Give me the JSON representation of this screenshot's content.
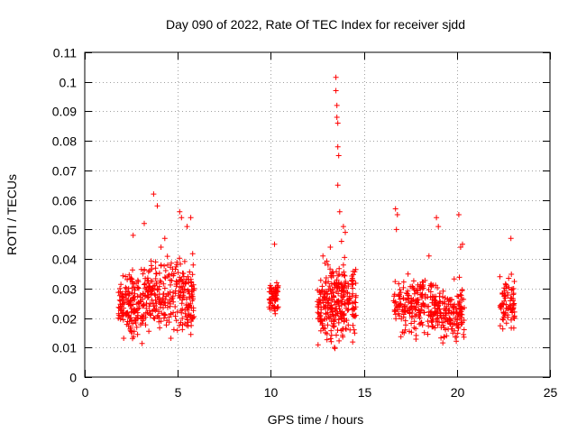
{
  "chart_data": {
    "type": "scatter",
    "title": "Day 090 of 2022, Rate Of TEC Index for receiver sjdd",
    "xlabel": "GPS time / hours",
    "ylabel": "ROTI / TECUs",
    "xlim": [
      0,
      25
    ],
    "ylim": [
      0,
      0.11
    ],
    "xticks": [
      0,
      5,
      10,
      15,
      20,
      25
    ],
    "xtick_labels": [
      "0",
      "5",
      "10",
      "15",
      "20",
      "25"
    ],
    "yticks": [
      0,
      0.01,
      0.02,
      0.03,
      0.04,
      0.05,
      0.06,
      0.07,
      0.08,
      0.09,
      0.1,
      0.11
    ],
    "ytick_labels": [
      "0",
      "0.01",
      "0.02",
      "0.03",
      "0.04",
      "0.05",
      "0.06",
      "0.07",
      "0.08",
      "0.09",
      "0.1",
      "0.11"
    ],
    "grid": true,
    "marker": "+",
    "series": [
      {
        "name": "ROTI",
        "color": "#ff0000",
        "clusters": [
          {
            "x_range": [
              1.8,
              3.2
            ],
            "y_range": [
              0.008,
              0.04
            ],
            "density": 160
          },
          {
            "x_range": [
              3.2,
              4.5
            ],
            "y_range": [
              0.012,
              0.043
            ],
            "density": 130
          },
          {
            "x_range": [
              4.5,
              5.9
            ],
            "y_range": [
              0.009,
              0.045
            ],
            "density": 150
          },
          {
            "x_range": [
              9.9,
              10.4
            ],
            "y_range": [
              0.018,
              0.037
            ],
            "density": 60
          },
          {
            "x_range": [
              12.5,
              14.6
            ],
            "y_range": [
              0.006,
              0.043
            ],
            "density": 280
          },
          {
            "x_range": [
              16.6,
              18.8
            ],
            "y_range": [
              0.011,
              0.037
            ],
            "density": 200
          },
          {
            "x_range": [
              18.8,
              20.4
            ],
            "y_range": [
              0.009,
              0.035
            ],
            "density": 160
          },
          {
            "x_range": [
              22.3,
              23.1
            ],
            "y_range": [
              0.014,
              0.038
            ],
            "density": 80
          }
        ],
        "outliers": [
          [
            2.6,
            0.048
          ],
          [
            3.2,
            0.052
          ],
          [
            3.7,
            0.062
          ],
          [
            3.9,
            0.058
          ],
          [
            4.3,
            0.047
          ],
          [
            4.1,
            0.044
          ],
          [
            5.1,
            0.056
          ],
          [
            5.2,
            0.054
          ],
          [
            5.7,
            0.054
          ],
          [
            5.5,
            0.051
          ],
          [
            10.2,
            0.045
          ],
          [
            12.8,
            0.041
          ],
          [
            13.2,
            0.044
          ],
          [
            13.5,
            0.1015
          ],
          [
            13.5,
            0.097
          ],
          [
            13.55,
            0.092
          ],
          [
            13.55,
            0.088
          ],
          [
            13.6,
            0.086
          ],
          [
            13.6,
            0.078
          ],
          [
            13.65,
            0.075
          ],
          [
            13.6,
            0.065
          ],
          [
            13.7,
            0.056
          ],
          [
            13.9,
            0.051
          ],
          [
            14.0,
            0.049
          ],
          [
            13.8,
            0.046
          ],
          [
            16.7,
            0.057
          ],
          [
            16.8,
            0.055
          ],
          [
            16.75,
            0.05
          ],
          [
            18.9,
            0.054
          ],
          [
            19.0,
            0.051
          ],
          [
            18.5,
            0.041
          ],
          [
            20.1,
            0.055
          ],
          [
            20.3,
            0.045
          ],
          [
            20.2,
            0.044
          ],
          [
            22.9,
            0.047
          ]
        ]
      }
    ]
  }
}
